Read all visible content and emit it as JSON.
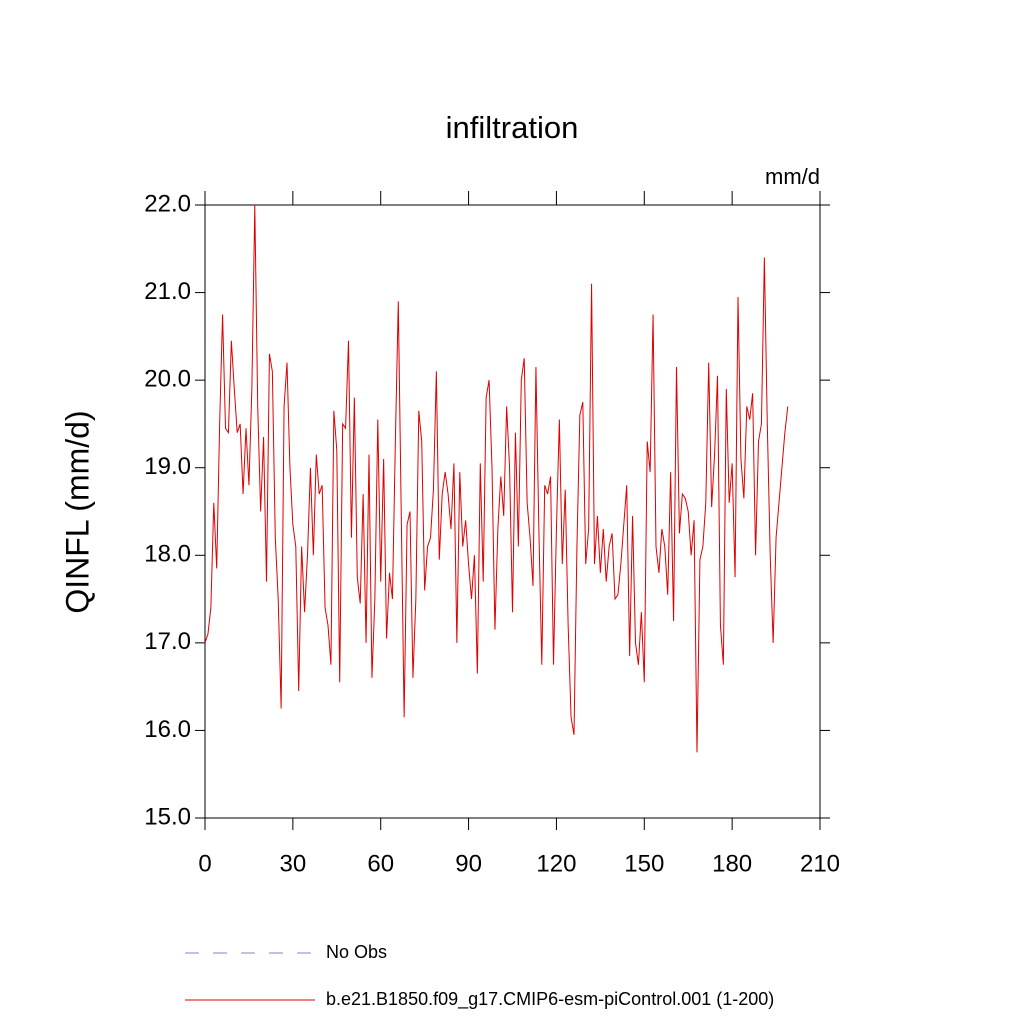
{
  "chart_data": {
    "type": "line",
    "title": "infiltration",
    "units": "mm/d",
    "y_label": "QINFL  (mm/d)",
    "xlim": [
      0,
      210
    ],
    "xticks": [
      0,
      30,
      60,
      90,
      120,
      150,
      180,
      210
    ],
    "ylim": [
      15,
      22
    ],
    "yticks": [
      {
        "value": 15,
        "label": "15.0"
      },
      {
        "value": 16,
        "label": "16.0"
      },
      {
        "value": 17,
        "label": "17.0"
      },
      {
        "value": 18,
        "label": "18.0"
      },
      {
        "value": 19,
        "label": "19.0"
      },
      {
        "value": 20,
        "label": "20.0"
      },
      {
        "value": 21,
        "label": "21.0"
      },
      {
        "value": 22,
        "label": "22.0"
      }
    ],
    "obs": {
      "name": "No Obs",
      "color": "#8080d0",
      "dashed": true
    },
    "x": [
      0,
      1,
      2,
      3,
      4,
      5,
      6,
      7,
      8,
      9,
      10,
      11,
      12,
      13,
      14,
      15,
      16,
      17,
      18,
      19,
      20,
      21,
      22,
      23,
      24,
      25,
      26,
      27,
      28,
      29,
      30,
      31,
      32,
      33,
      34,
      35,
      36,
      37,
      38,
      39,
      40,
      41,
      42,
      43,
      44,
      45,
      46,
      47,
      48,
      49,
      50,
      51,
      52,
      53,
      54,
      55,
      56,
      57,
      58,
      59,
      60,
      61,
      62,
      63,
      64,
      65,
      66,
      67,
      68,
      69,
      70,
      71,
      72,
      73,
      74,
      75,
      76,
      77,
      78,
      79,
      80,
      81,
      82,
      83,
      84,
      85,
      86,
      87,
      88,
      89,
      90,
      91,
      92,
      93,
      94,
      95,
      96,
      97,
      98,
      99,
      100,
      101,
      102,
      103,
      104,
      105,
      106,
      107,
      108,
      109,
      110,
      111,
      112,
      113,
      114,
      115,
      116,
      117,
      118,
      119,
      120,
      121,
      122,
      123,
      124,
      125,
      126,
      127,
      128,
      129,
      130,
      131,
      132,
      133,
      134,
      135,
      136,
      137,
      138,
      139,
      140,
      141,
      142,
      143,
      144,
      145,
      146,
      147,
      148,
      149,
      150,
      151,
      152,
      153,
      154,
      155,
      156,
      157,
      158,
      159,
      160,
      161,
      162,
      163,
      164,
      165,
      166,
      167,
      168,
      169,
      170,
      171,
      172,
      173,
      174,
      175,
      176,
      177,
      178,
      179,
      180,
      181,
      182,
      183,
      184,
      185,
      186,
      187,
      188,
      189,
      190,
      191,
      192,
      193,
      194,
      195,
      196,
      197,
      198,
      199
    ],
    "series": [
      {
        "name": "b.e21.B1850.f09_g17.CMIP6-esm-piControl.001 (1-200)",
        "color": "#e00000",
        "values": [
          17.0,
          17.1,
          17.4,
          18.6,
          17.85,
          19.5,
          20.75,
          19.45,
          19.4,
          20.45,
          19.9,
          19.4,
          19.5,
          18.7,
          19.45,
          18.8,
          19.9,
          22.0,
          19.7,
          18.5,
          19.35,
          17.7,
          20.3,
          20.1,
          18.2,
          17.5,
          16.25,
          19.7,
          20.2,
          19.0,
          18.35,
          18.1,
          16.45,
          18.1,
          17.35,
          18.0,
          19.0,
          18.0,
          19.15,
          18.7,
          18.8,
          17.4,
          17.2,
          16.75,
          19.65,
          19.2,
          16.55,
          19.5,
          19.45,
          20.45,
          18.2,
          19.8,
          17.75,
          17.45,
          18.7,
          17.0,
          19.15,
          16.6,
          17.5,
          19.55,
          17.7,
          19.1,
          17.05,
          17.8,
          17.5,
          19.3,
          20.9,
          18.5,
          16.15,
          18.35,
          18.5,
          16.6,
          17.5,
          19.65,
          19.3,
          17.6,
          18.1,
          18.2,
          18.75,
          20.1,
          17.95,
          18.7,
          18.95,
          18.7,
          18.3,
          19.05,
          17.0,
          18.95,
          18.1,
          18.4,
          17.9,
          17.5,
          18.0,
          16.65,
          19.05,
          17.7,
          19.8,
          20.0,
          19.0,
          17.15,
          18.3,
          18.9,
          18.45,
          19.7,
          19.0,
          17.35,
          19.4,
          18.1,
          20.0,
          20.25,
          18.6,
          18.2,
          17.65,
          20.15,
          18.3,
          16.75,
          18.8,
          18.7,
          18.9,
          16.75,
          18.3,
          19.55,
          17.9,
          18.75,
          17.2,
          16.15,
          15.95,
          18.1,
          19.6,
          19.75,
          17.9,
          18.3,
          21.1,
          17.9,
          18.45,
          17.8,
          18.3,
          17.7,
          18.1,
          18.25,
          17.5,
          17.55,
          17.9,
          18.35,
          18.8,
          16.85,
          18.45,
          17.0,
          16.75,
          17.35,
          16.55,
          19.3,
          18.95,
          20.75,
          18.1,
          17.8,
          18.3,
          18.1,
          17.55,
          18.95,
          17.25,
          20.15,
          18.25,
          18.7,
          18.65,
          18.5,
          18.0,
          18.4,
          15.75,
          17.95,
          18.1,
          18.6,
          20.2,
          18.55,
          19.15,
          20.05,
          17.2,
          16.75,
          19.9,
          18.6,
          19.05,
          17.75,
          20.95,
          19.1,
          18.65,
          19.7,
          19.55,
          19.85,
          18.0,
          19.3,
          19.5,
          21.4,
          19.5,
          18.0,
          17.0,
          18.2,
          18.6,
          19.0,
          19.4,
          19.7
        ]
      }
    ]
  }
}
